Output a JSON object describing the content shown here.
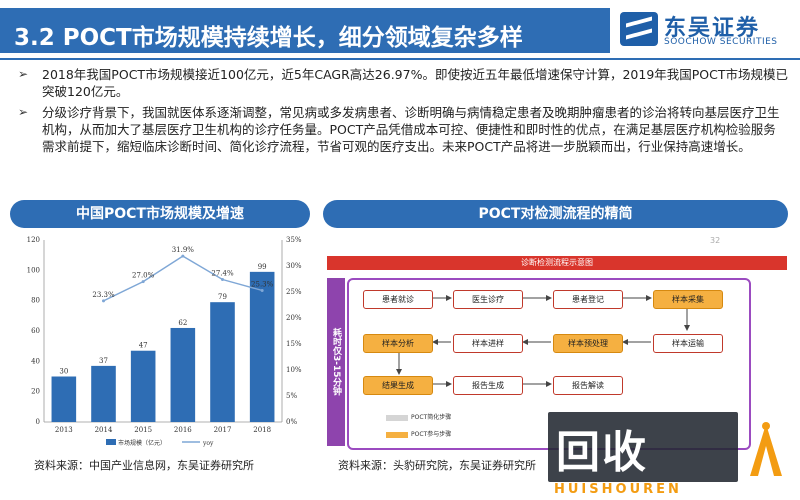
{
  "header": {
    "title": "3.2 POCT市场规模持续增长，细分领域复杂多样",
    "logo_cn": "东吴证券",
    "logo_en": "SOOCHOW SECURITIES",
    "brand_color": "#2e6db4"
  },
  "bullets": [
    "2018年我国POCT市场规模接近100亿元，近5年CAGR高达26.97%。即使按近五年最低增速保守计算，2019年我国POCT市场规模已突破120亿元。",
    "分级诊疗背景下，我国就医体系逐渐调整，常见病或多发病患者、诊断明确与病情稳定患者及晚期肿瘤患者的诊治将转向基层医疗卫生机构，从而加大了基层医疗卫生机构的诊疗任务量。POCT产品凭借成本可控、便捷性和即时性的优点，在满足基层医疗机构检验服务需求前提下，缩短临床诊断时间、简化诊疗流程，节省可观的医疗支出。未来POCT产品将进一步脱颖而出，行业保持高速增长。"
  ],
  "left_panel": {
    "heading": "中国POCT市场规模及增速",
    "source": "资料来源：中国产业信息网，东吴证券研究所"
  },
  "right_panel": {
    "heading": "POCT对检测流程的精简",
    "source": "资料来源：头豹研究院，东吴证券研究所",
    "flow_title": "诊断检测流程示意图",
    "side_label": "耗时仅3-15分钟",
    "nodes": {
      "n1": "患者就诊",
      "n2": "医生诊疗",
      "n3": "患者登记",
      "n4": "样本采集",
      "n5": "样本分析",
      "n6": "样本进样",
      "n7": "样本预处理",
      "n8": "样本运输",
      "n9": "结果生成",
      "n10": "报告生成",
      "n11": "报告解读"
    },
    "legend": [
      "POCT简化步骤",
      "POCT参与步骤"
    ],
    "page_number": "32"
  },
  "chart_data": {
    "type": "bar",
    "categories": [
      "2013",
      "2014",
      "2015",
      "2016",
      "2017",
      "2018"
    ],
    "series": [
      {
        "name": "市场规模（亿元）",
        "type": "bar",
        "values": [
          30,
          37,
          47,
          62,
          79,
          99
        ],
        "color": "#2e6db4"
      },
      {
        "name": "yoy",
        "type": "line",
        "values": [
          null,
          23.3,
          27.0,
          31.9,
          27.4,
          25.3
        ],
        "color": "#7fa7d6"
      }
    ],
    "ylim": [
      0,
      120
    ],
    "y2lim": [
      0,
      35
    ],
    "yticks": [
      0,
      20,
      40,
      60,
      80,
      100,
      120
    ],
    "y2ticks": [
      "0%",
      "5%",
      "10%",
      "15%",
      "20%",
      "25%",
      "30%",
      "35%"
    ],
    "bar_labels": [
      "30",
      "37",
      "47",
      "62",
      "79",
      "99"
    ],
    "line_labels": [
      "",
      "23.3%",
      "27.0%",
      "31.9%",
      "27.4%",
      "25.3%"
    ],
    "legend": [
      "市场规模（亿元）",
      "yoy"
    ]
  },
  "watermark": {
    "text": "回收",
    "sub": "HUISHOUREN"
  }
}
